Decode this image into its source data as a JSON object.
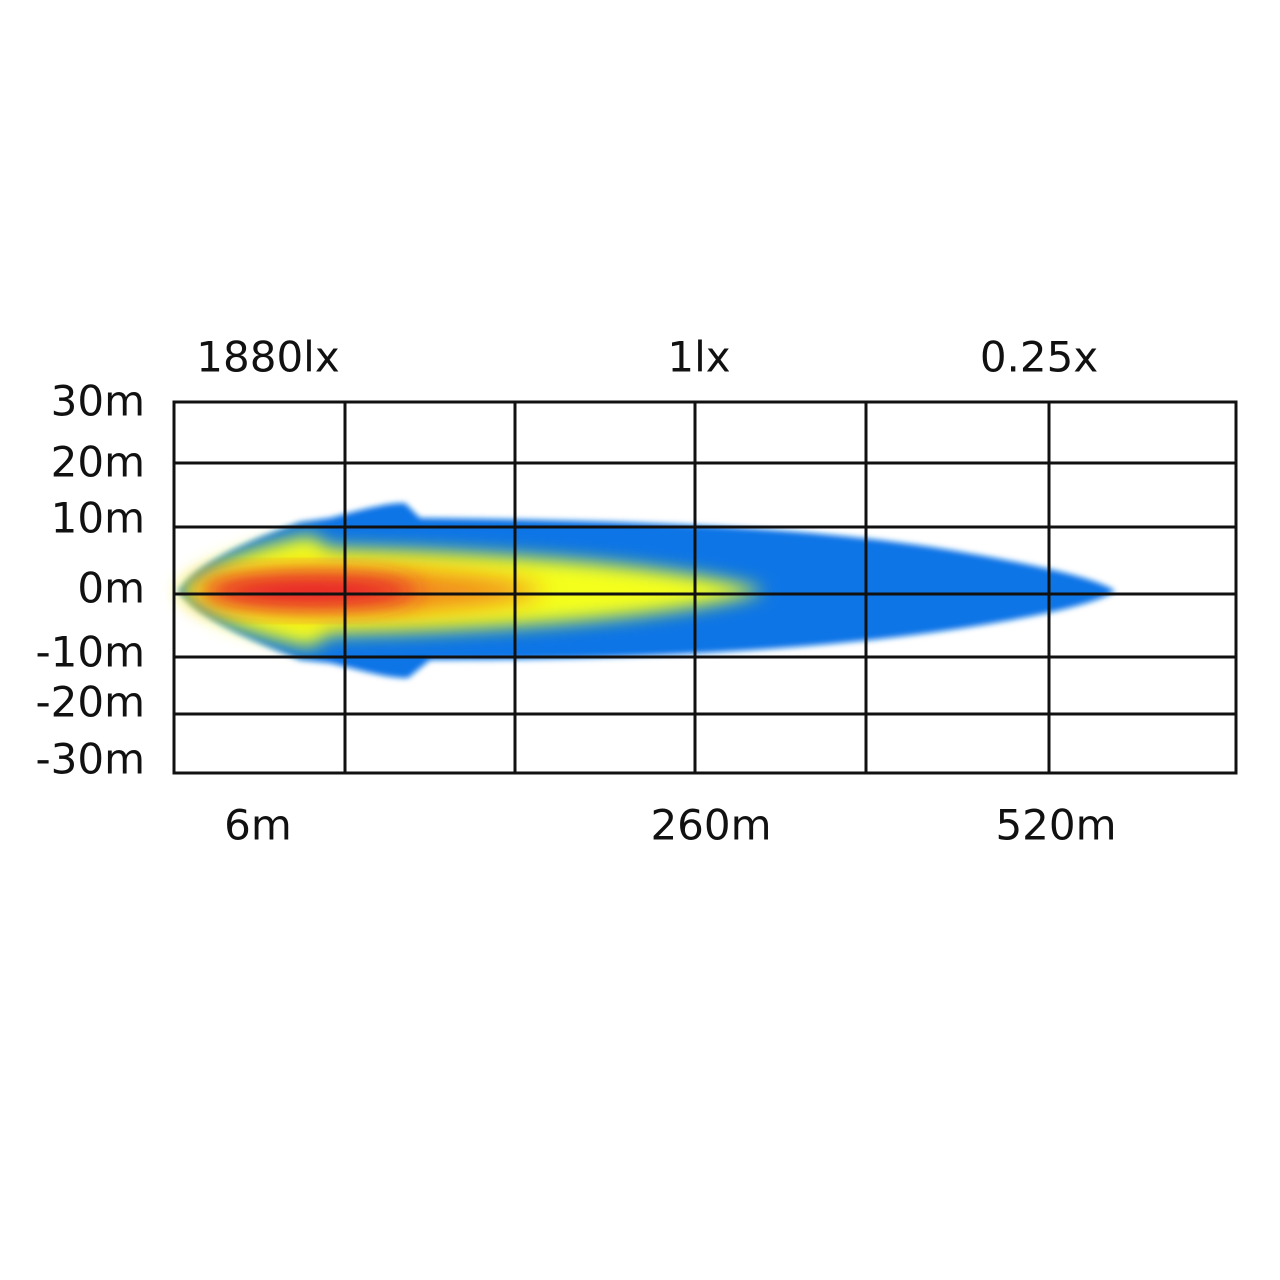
{
  "lux_labels": [
    "1880lx",
    "1lx",
    "0.25x"
  ],
  "y_axis_labels": [
    "30m",
    "20m",
    "10m",
    "0m",
    "-10m",
    "-20m",
    "-30m"
  ],
  "distance_labels": [
    "6m",
    "260m",
    "520m"
  ]
}
